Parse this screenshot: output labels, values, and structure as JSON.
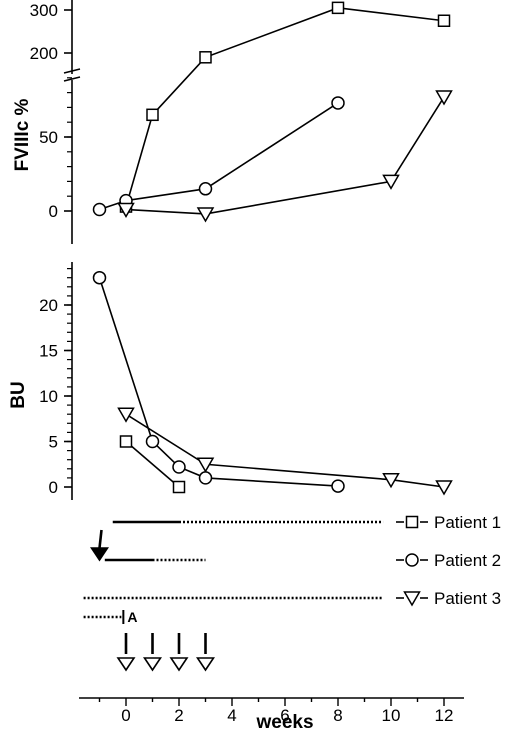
{
  "chart_data": [
    {
      "type": "line",
      "ylabel": "FVIIIc %",
      "y_axis_break": true,
      "yticks_lower": [
        0,
        50
      ],
      "yticks_upper": [
        200,
        300
      ],
      "series": [
        {
          "name": "Patient 1",
          "marker": "square",
          "x": [
            0,
            1,
            3,
            8,
            12
          ],
          "y": [
            3,
            65,
            190,
            305,
            275
          ]
        },
        {
          "name": "Patient 2",
          "marker": "circle",
          "x": [
            -1,
            0,
            3,
            8
          ],
          "y": [
            1,
            7,
            15,
            73
          ]
        },
        {
          "name": "Patient 3",
          "marker": "triangle-down",
          "x": [
            0,
            3,
            10,
            12
          ],
          "y": [
            1,
            -2,
            20,
            77
          ]
        }
      ]
    },
    {
      "type": "line",
      "ylabel": "BU",
      "yticks": [
        0,
        5,
        10,
        15,
        20
      ],
      "xlabel": "weeks",
      "xticks": [
        0,
        2,
        4,
        6,
        8,
        10,
        12
      ],
      "xlim": [
        -1.8,
        12.8
      ],
      "series": [
        {
          "name": "Patient 1",
          "marker": "square",
          "x": [
            0,
            2
          ],
          "y": [
            5,
            0
          ]
        },
        {
          "name": "Patient 2",
          "marker": "circle",
          "x": [
            -1,
            1,
            2,
            3,
            8
          ],
          "y": [
            23,
            5,
            2.2,
            1,
            0.1
          ]
        },
        {
          "name": "Patient 3",
          "marker": "triangle-down",
          "x": [
            0,
            3,
            10,
            12
          ],
          "y": [
            8,
            2.5,
            0.8,
            0
          ]
        }
      ]
    }
  ],
  "treatment_timeline": {
    "rows": [
      {
        "name": "Patient 1",
        "marker": "square",
        "solid": [
          -0.5,
          2
        ],
        "dotted": [
          2,
          9.7
        ]
      },
      {
        "name": "Patient 2",
        "marker": "circle",
        "solid": [
          -0.8,
          1
        ],
        "dotted": [
          1,
          3
        ]
      },
      {
        "name": "Patient 3",
        "marker": "triangle-down",
        "dotted": [
          -1.6,
          9.7
        ]
      }
    ],
    "start_arrow_week": -1,
    "a_segment": {
      "label": "A",
      "dotted": [
        -1.6,
        -0.1
      ]
    },
    "dose_arrow_weeks": [
      0,
      1,
      2,
      3
    ]
  }
}
